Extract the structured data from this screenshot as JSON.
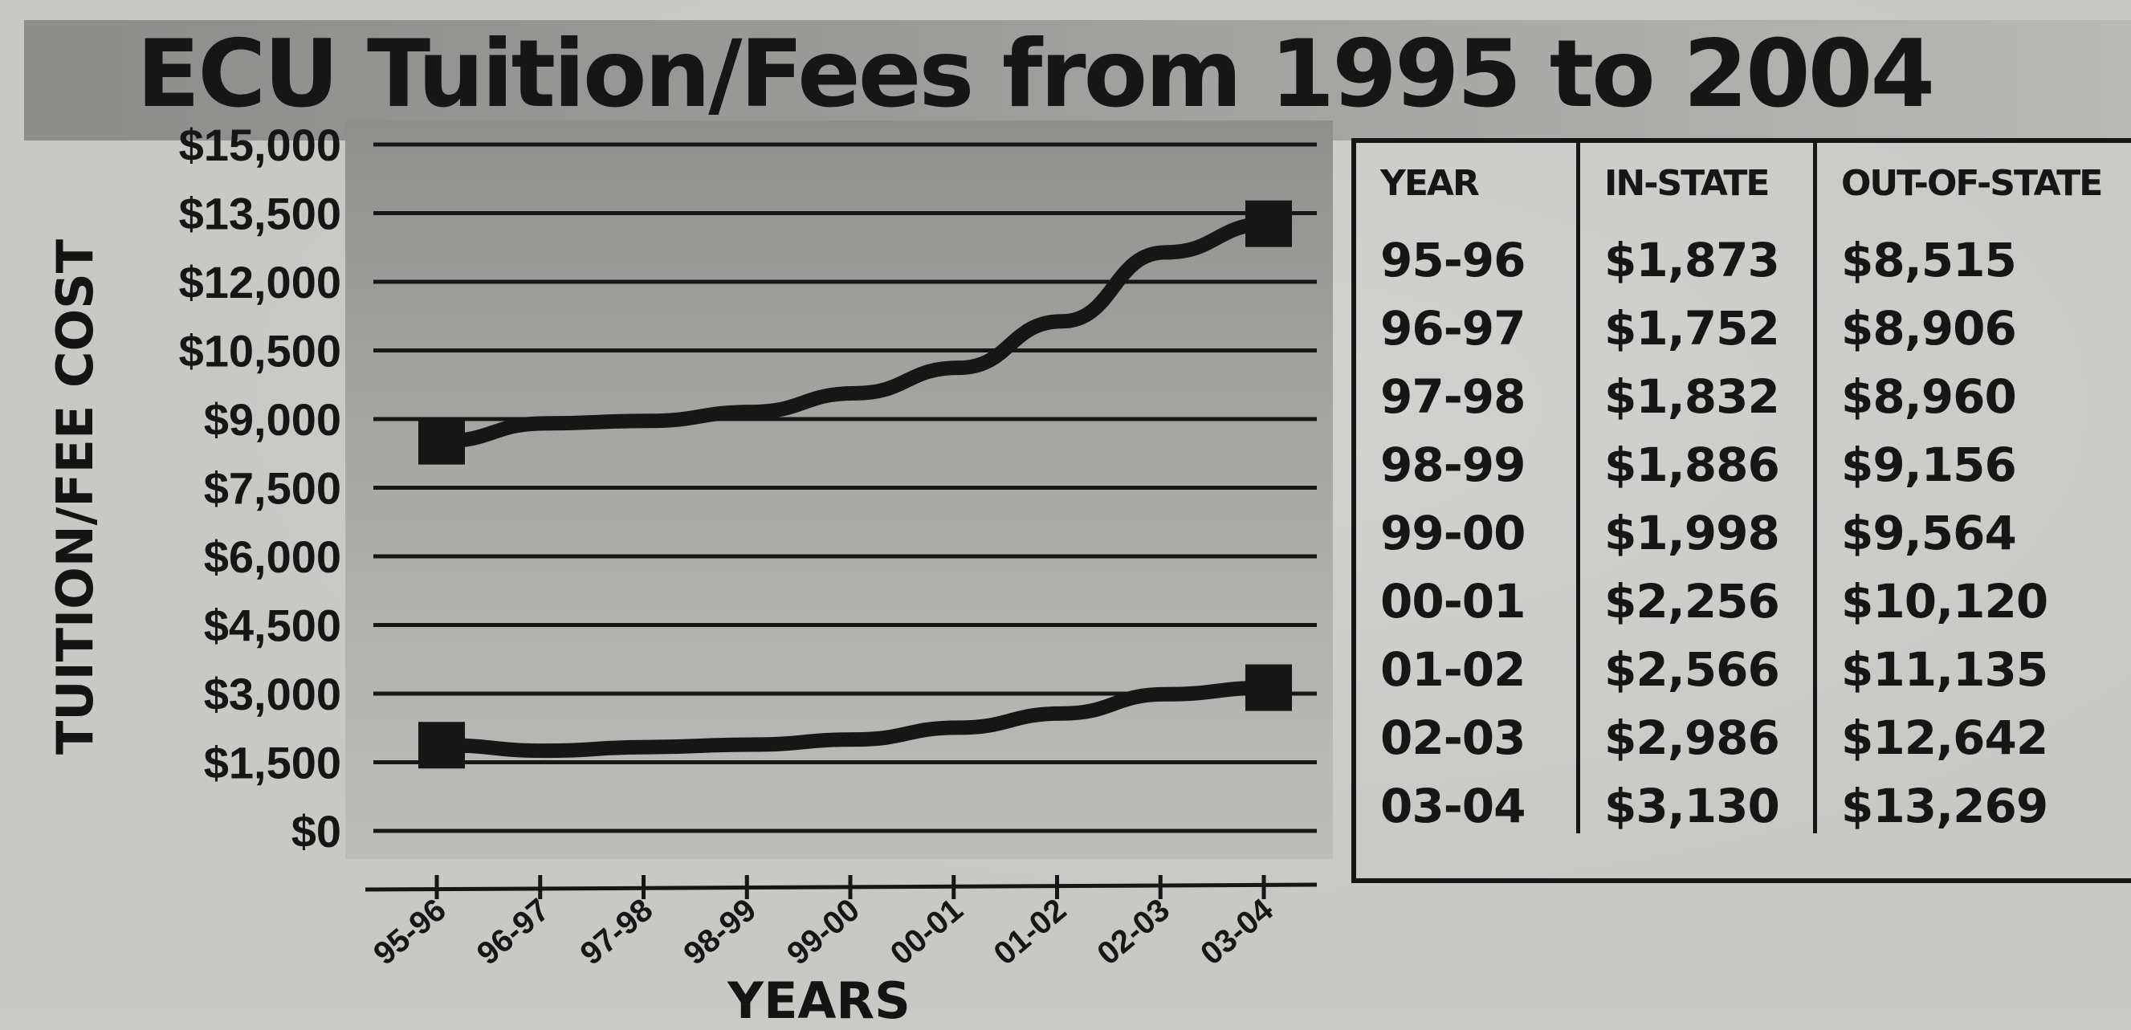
{
  "chart_data": [
    {
      "type": "line",
      "title": "ECU Tuition/Fees from 1995 to 2004",
      "xlabel": "YEARS",
      "ylabel": "TUITION/FEE COST",
      "ylim": [
        0,
        15000
      ],
      "yticks": [
        0,
        1500,
        3000,
        4500,
        6000,
        7500,
        9000,
        10500,
        12000,
        13500,
        15000
      ],
      "ytick_labels": [
        "$0",
        "$1,500",
        "$3,000",
        "$4,500",
        "$6,000",
        "$7,500",
        "$9,000",
        "$10,500",
        "$12,000",
        "$13,500",
        "$15,000"
      ],
      "categories": [
        "95-96",
        "96-97",
        "97-98",
        "98-99",
        "99-00",
        "00-01",
        "01-02",
        "02-03",
        "03-04"
      ],
      "series": [
        {
          "values": [
            8515,
            8906,
            8960,
            9156,
            9564,
            10120,
            11135,
            12642,
            13269
          ]
        },
        {
          "values": [
            1873,
            1752,
            1832,
            1886,
            1998,
            2256,
            2566,
            2986,
            3130
          ]
        }
      ],
      "grid": true,
      "legend": "none"
    },
    {
      "type": "table",
      "columns": [
        "YEAR",
        "IN-STATE",
        "OUT-OF-STATE"
      ],
      "rows": [
        [
          "95-96",
          "$1,873",
          "$8,515"
        ],
        [
          "96-97",
          "$1,752",
          "$8,906"
        ],
        [
          "97-98",
          "$1,832",
          "$8,960"
        ],
        [
          "98-99",
          "$1,886",
          "$9,156"
        ],
        [
          "99-00",
          "$1,998",
          "$9,564"
        ],
        [
          "00-01",
          "$2,256",
          "$10,120"
        ],
        [
          "01-02",
          "$2,566",
          "$11,135"
        ],
        [
          "02-03",
          "$2,986",
          "$12,642"
        ],
        [
          "03-04",
          "$3,130",
          "$13,269"
        ]
      ]
    }
  ],
  "colors": {
    "ink": "#161616",
    "paper": "#c8c8c5"
  }
}
